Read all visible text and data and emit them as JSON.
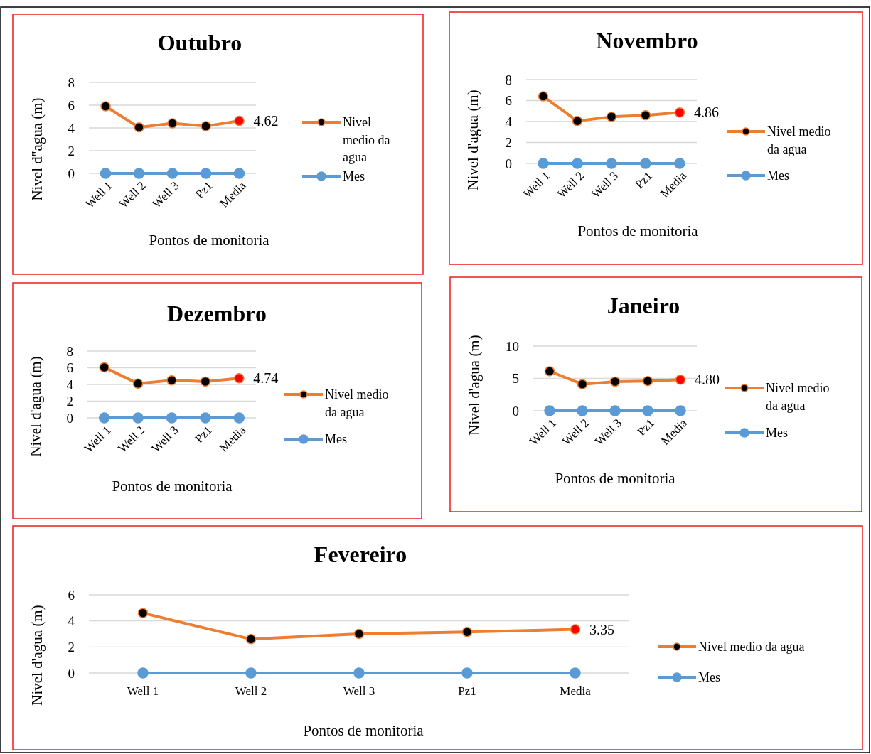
{
  "chart_data": [
    {
      "type": "line",
      "title": "Outubro",
      "xlabel": "Pontos de monitoria",
      "ylabel": "Nivel d''agua (m)",
      "categories": [
        "Well 1",
        "Well 2",
        "Well 3",
        "Pz1",
        "Media"
      ],
      "ylim": [
        0,
        8
      ],
      "yticks": [
        0,
        2,
        4,
        6,
        8
      ],
      "grid": "y",
      "legend": "right",
      "marker": "circle",
      "series": [
        {
          "name": "Nivel medio da agua",
          "color": "#ed7d31",
          "colors": [
            "#000000",
            "#000000",
            "#000000",
            "#000000",
            "#ff0000"
          ],
          "values": [
            5.9,
            4.05,
            4.4,
            4.15,
            4.62
          ],
          "value_labels": [
            null,
            null,
            null,
            null,
            "4.62"
          ]
        },
        {
          "name": "Mes",
          "color": "#5b9bd5",
          "values": [
            0,
            0,
            0,
            0,
            0
          ]
        }
      ]
    },
    {
      "type": "line",
      "title": "Novembro",
      "xlabel": "Pontos de monitoria",
      "ylabel": "Nivel d'agua (m)",
      "categories": [
        "Well 1",
        "Well 2",
        "Well 3",
        "Pz1",
        "Media"
      ],
      "ylim": [
        0,
        8
      ],
      "yticks": [
        0,
        2,
        4,
        6,
        8
      ],
      "grid": "y",
      "legend": "right",
      "marker": "circle",
      "series": [
        {
          "name": "Nivel medio da agua",
          "color": "#ed7d31",
          "colors": [
            "#000000",
            "#000000",
            "#000000",
            "#000000",
            "#ff0000"
          ],
          "values": [
            6.4,
            4.05,
            4.45,
            4.6,
            4.86
          ],
          "value_labels": [
            null,
            null,
            null,
            null,
            "4.86"
          ]
        },
        {
          "name": "Mes",
          "color": "#5b9bd5",
          "values": [
            0,
            0,
            0,
            0,
            0
          ]
        }
      ]
    },
    {
      "type": "line",
      "title": "Dezembro",
      "xlabel": "Pontos de monitoria",
      "ylabel": "Nivel d'agua (m)",
      "categories": [
        "Well 1",
        "Well 2",
        "Well 3",
        "Pz1",
        "Media"
      ],
      "ylim": [
        0,
        8
      ],
      "yticks": [
        0,
        2,
        4,
        6,
        8
      ],
      "grid": "y",
      "legend": "right",
      "marker": "circle",
      "series": [
        {
          "name": "Nivel medio da agua",
          "color": "#ed7d31",
          "colors": [
            "#000000",
            "#000000",
            "#000000",
            "#000000",
            "#ff0000"
          ],
          "values": [
            6.05,
            4.1,
            4.5,
            4.35,
            4.74
          ],
          "value_labels": [
            null,
            null,
            null,
            null,
            "4.74"
          ]
        },
        {
          "name": "Mes",
          "color": "#5b9bd5",
          "values": [
            0,
            0,
            0,
            0,
            0
          ]
        }
      ]
    },
    {
      "type": "line",
      "title": "Janeiro",
      "xlabel": "Pontos de monitoria",
      "ylabel": "Nivel d'agua (m)",
      "categories": [
        "Well 1",
        "Well 2",
        "Well 3",
        "Pz1",
        "Media"
      ],
      "ylim": [
        0,
        10
      ],
      "yticks": [
        0,
        5,
        10
      ],
      "grid": "y",
      "legend": "right",
      "marker": "circle",
      "series": [
        {
          "name": "Nivel medio da agua",
          "color": "#ed7d31",
          "colors": [
            "#000000",
            "#000000",
            "#000000",
            "#000000",
            "#ff0000"
          ],
          "values": [
            6.1,
            4.1,
            4.5,
            4.6,
            4.8
          ],
          "value_labels": [
            null,
            null,
            null,
            null,
            "4.80"
          ]
        },
        {
          "name": "Mes",
          "color": "#5b9bd5",
          "values": [
            0,
            0,
            0,
            0,
            0
          ]
        }
      ]
    },
    {
      "type": "line",
      "title": "Fevereiro",
      "xlabel": "Pontos de monitoria",
      "ylabel": "Nivel d'agua (m)",
      "categories": [
        "Well 1",
        "Well 2",
        "Well 3",
        "Pz1",
        "Media"
      ],
      "ylim": [
        0,
        6
      ],
      "yticks": [
        0,
        2,
        4,
        6
      ],
      "grid": "y",
      "legend": "right",
      "marker": "circle",
      "series": [
        {
          "name": "Nivel medio da agua",
          "color": "#ed7d31",
          "colors": [
            "#000000",
            "#000000",
            "#000000",
            "#000000",
            "#ff0000"
          ],
          "values": [
            4.6,
            2.6,
            3.0,
            3.15,
            3.35
          ],
          "value_labels": [
            null,
            null,
            null,
            null,
            "3.35"
          ]
        },
        {
          "name": "Mes",
          "color": "#5b9bd5",
          "values": [
            0,
            0,
            0,
            0,
            0
          ]
        }
      ]
    }
  ]
}
